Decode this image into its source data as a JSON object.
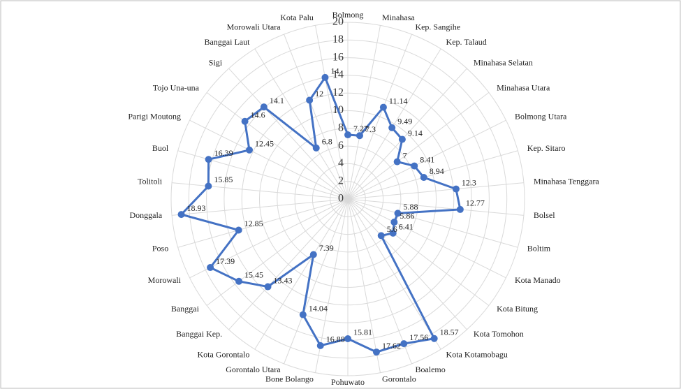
{
  "chart_data": {
    "type": "radar",
    "categories": [
      "Bolmong",
      "Minahasa",
      "Kep. Sangihe",
      "Kep. Talaud",
      "Minahasa Selatan",
      "Minahasa Utara",
      "Bolmong Utara",
      "Kep. Sitaro",
      "Minahasa Tenggara",
      "Bolsel",
      "Boltim",
      "Kota Manado",
      "Kota Bitung",
      "Kota Tomohon",
      "Kota Kotamobagu",
      "Boalemo",
      "Gorontalo",
      "Pohuwato",
      "Bone Bolango",
      "Gorontalo Utara",
      "Kota Gorontalo",
      "Banggai Kep.",
      "Banggai",
      "Morowali",
      "Poso",
      "Donggala",
      "Tolitoli",
      "Buol",
      "Parigi Moutong",
      "Tojo Una-una",
      "Sigi",
      "Banggai Laut",
      "Morowali Utara",
      "Kota Palu"
    ],
    "series": [
      {
        "color": "#4472c4",
        "values": [
          7.27,
          7.3,
          11.14,
          9.49,
          9.14,
          7,
          8.41,
          8.94,
          12.3,
          12.77,
          5.88,
          5.86,
          6.41,
          5.6,
          18.57,
          17.56,
          17.62,
          15.81,
          16.88,
          14.04,
          7.39,
          13.43,
          15.45,
          17.39,
          12.85,
          18.93,
          15.85,
          16.39,
          12.45,
          14.6,
          14.1,
          6.8,
          12,
          14
        ]
      }
    ],
    "ylim": [
      0,
      20
    ],
    "yticks": [
      0,
      2,
      4,
      6,
      8,
      10,
      12,
      14,
      16,
      18,
      20
    ],
    "grid": true
  }
}
